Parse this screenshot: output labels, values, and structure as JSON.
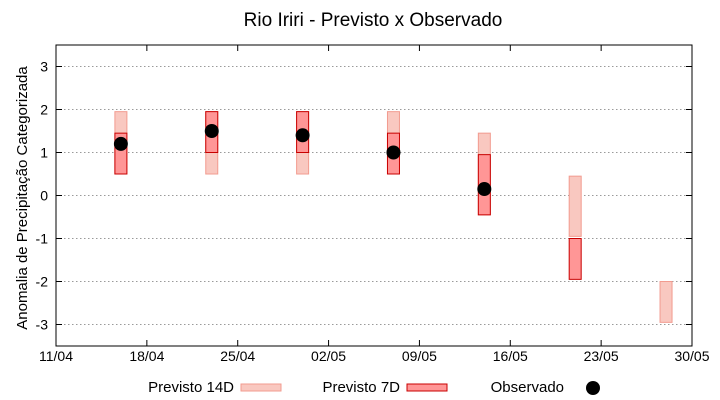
{
  "chart_data": {
    "type": "range-bar",
    "title": "Rio Iriri - Previsto x Observado",
    "xlabel": "",
    "ylabel": "Anomalia de Precipitação Categorizada",
    "ylim": [
      -3.5,
      3.5
    ],
    "yticks": [
      3,
      2,
      1,
      0,
      -1,
      -2,
      -3
    ],
    "ytick_labels": [
      "3",
      "2",
      "1",
      "0",
      "-1",
      "-2",
      "-3"
    ],
    "xlim": [
      0,
      49
    ],
    "xticks": [
      0,
      7,
      14,
      21,
      28,
      35,
      42,
      49
    ],
    "xtick_labels": [
      "11/04",
      "18/04",
      "25/04",
      "02/05",
      "09/05",
      "16/05",
      "23/05",
      "30/05"
    ],
    "grid": true,
    "legend_position": "bottom",
    "colors": {
      "forecast14_fill": "#f9c8c0",
      "forecast14_stroke": "#f29b8f",
      "forecast7_fill": "#ff9696",
      "forecast7_stroke": "#c80000",
      "observed": "#000000",
      "grid": "#9a9a9a"
    },
    "series": [
      {
        "name": "Previsto 14D",
        "points": [
          {
            "x": 5,
            "low": 0.5,
            "high": 1.95
          },
          {
            "x": 12,
            "low": 0.5,
            "high": 1.95
          },
          {
            "x": 19,
            "low": 0.5,
            "high": 1.95
          },
          {
            "x": 26,
            "low": 0.5,
            "high": 1.95
          },
          {
            "x": 33,
            "low": -0.45,
            "high": 1.45
          },
          {
            "x": 40,
            "low": -0.95,
            "high": 0.45
          },
          {
            "x": 47,
            "low": -2.95,
            "high": -2.0
          }
        ]
      },
      {
        "name": "Previsto 7D",
        "points": [
          {
            "x": 5,
            "low": 0.5,
            "high": 1.45
          },
          {
            "x": 12,
            "low": 1.0,
            "high": 1.95
          },
          {
            "x": 19,
            "low": 1.0,
            "high": 1.95
          },
          {
            "x": 26,
            "low": 0.5,
            "high": 1.45
          },
          {
            "x": 33,
            "low": -0.45,
            "high": 0.95
          },
          {
            "x": 40,
            "low": -1.95,
            "high": -1.0
          }
        ]
      },
      {
        "name": "Observado",
        "points": [
          {
            "x": 5,
            "y": 1.2
          },
          {
            "x": 12,
            "y": 1.5
          },
          {
            "x": 19,
            "y": 1.4
          },
          {
            "x": 26,
            "y": 1.0
          },
          {
            "x": 33,
            "y": 0.15
          }
        ]
      }
    ]
  }
}
